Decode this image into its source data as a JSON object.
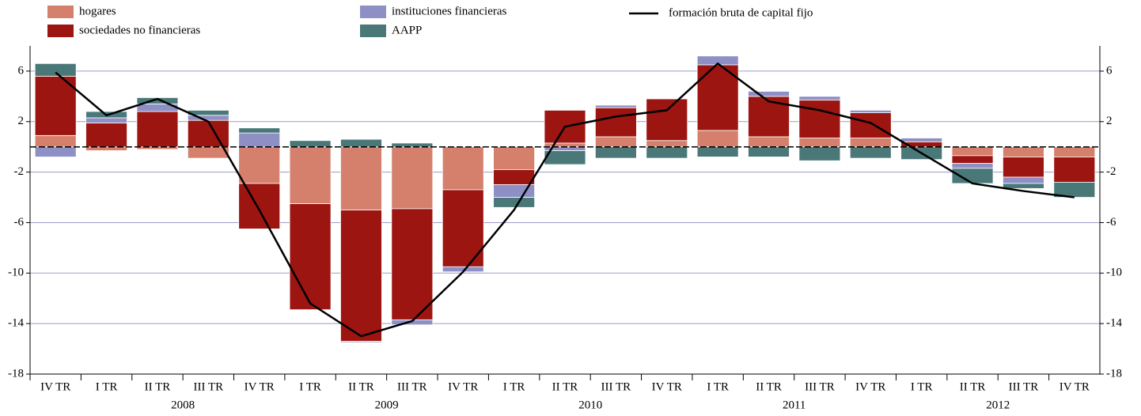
{
  "chart_data": {
    "type": "bar",
    "categories": [
      "IV TR",
      "I TR",
      "II TR",
      "III TR",
      "IV TR",
      "I TR",
      "II TR",
      "III TR",
      "IV TR",
      "I TR",
      "II TR",
      "III TR",
      "IV TR",
      "I TR",
      "II TR",
      "III TR",
      "IV TR",
      "I TR",
      "II TR",
      "III TR",
      "IV TR"
    ],
    "category_groups": [
      {
        "label": "2008",
        "first": 1,
        "count": 4
      },
      {
        "label": "2009",
        "first": 5,
        "count": 4
      },
      {
        "label": "2010",
        "first": 9,
        "count": 4
      },
      {
        "label": "2011",
        "first": 13,
        "count": 4
      },
      {
        "label": "2012",
        "first": 17,
        "count": 4
      }
    ],
    "stacked": true,
    "series": [
      {
        "name": "hogares",
        "color": "#d4806c",
        "values": [
          0.9,
          -0.3,
          -0.2,
          -0.9,
          -2.9,
          -4.5,
          -5.0,
          -4.9,
          -3.4,
          -1.8,
          0.3,
          0.8,
          0.5,
          1.3,
          0.8,
          0.7,
          0.7,
          0,
          -0.7,
          -0.8,
          -0.8
        ]
      },
      {
        "name": "sociedades no financieras",
        "color": "#9c1510",
        "values": [
          4.7,
          1.9,
          2.8,
          2.1,
          -3.6,
          -8.4,
          -10.4,
          -8.8,
          -6.1,
          -1.2,
          2.6,
          2.3,
          3.3,
          5.2,
          3.2,
          3.0,
          2.0,
          0.4,
          -0.6,
          -1.6,
          -2.0
        ]
      },
      {
        "name": "instituciones financieras",
        "color": "#8e8fc4",
        "values": [
          -0.8,
          0.4,
          0.6,
          0.4,
          1.1,
          0,
          -0.1,
          -0.4,
          -0.4,
          -1.0,
          -0.3,
          0.2,
          0,
          0.7,
          0.4,
          0.3,
          0.2,
          0.3,
          -0.4,
          -0.5,
          0
        ]
      },
      {
        "name": "AAPP",
        "color": "#4a7878",
        "values": [
          1.0,
          0.5,
          0.5,
          0.4,
          0.4,
          0.5,
          0.6,
          0.3,
          0,
          -0.8,
          -1.1,
          -0.9,
          -0.9,
          -0.8,
          -0.8,
          -1.1,
          -0.9,
          -1.0,
          -1.2,
          -0.4,
          -1.2
        ]
      }
    ],
    "line": {
      "name": "formación bruta de capital fijo",
      "color": "#000000",
      "values": [
        5.9,
        2.5,
        3.8,
        2.0,
        -5.0,
        -12.4,
        -15.0,
        -13.8,
        -9.9,
        -5.0,
        1.6,
        2.4,
        2.9,
        6.6,
        3.6,
        2.9,
        1.9,
        -0.5,
        -2.9,
        -3.5,
        -4.0
      ]
    },
    "ylim": [
      -18,
      8
    ],
    "yticks": [
      6,
      2,
      -2,
      -6,
      -10,
      -14,
      -18
    ],
    "grid": true
  }
}
